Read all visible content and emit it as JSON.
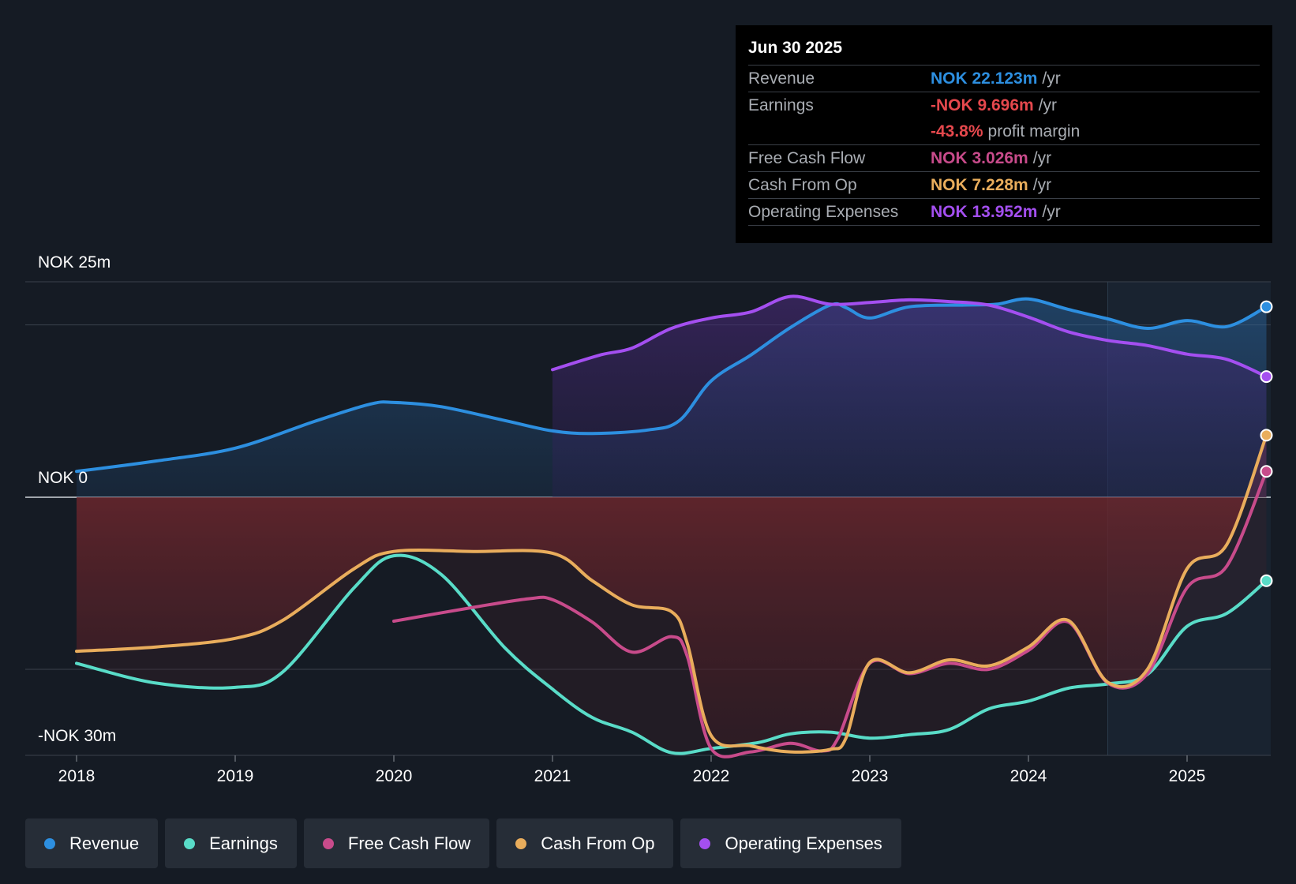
{
  "tooltip": {
    "date": "Jun 30 2025",
    "rows": [
      {
        "label": "Revenue",
        "value": "NOK 22.123m",
        "unit": "/yr",
        "color": "#2d8fe0"
      },
      {
        "label": "Earnings",
        "value": "-NOK 9.696m",
        "unit": "/yr",
        "color": "#e5484d"
      },
      {
        "label": "",
        "value": "-43.8%",
        "unit": "profit margin",
        "color": "#e5484d"
      },
      {
        "label": "Free Cash Flow",
        "value": "NOK 3.026m",
        "unit": "/yr",
        "color": "#c84b8b"
      },
      {
        "label": "Cash From Op",
        "value": "NOK 7.228m",
        "unit": "/yr",
        "color": "#e9ad5c"
      },
      {
        "label": "Operating Expenses",
        "value": "NOK 13.952m",
        "unit": "/yr",
        "color": "#a44ff0"
      }
    ]
  },
  "chart_data": {
    "type": "area",
    "title": "",
    "xlabel": "",
    "ylabel": "",
    "y_axis_labels": {
      "top": "NOK 25m",
      "zero": "NOK 0",
      "bottom": "-NOK 30m"
    },
    "ylim": [
      -30,
      25
    ],
    "xlim": [
      2017.68,
      2025.5
    ],
    "x_ticks": [
      2018,
      2019,
      2020,
      2021,
      2022,
      2023,
      2024,
      2025
    ],
    "x_tick_labels": [
      "2018",
      "2019",
      "2020",
      "2021",
      "2022",
      "2023",
      "2024",
      "2025"
    ],
    "gridlines_y": [
      25,
      20,
      0,
      -20,
      -30
    ],
    "forecast_start": 2024.5,
    "series": [
      {
        "name": "Revenue",
        "color": "#2d8fe0",
        "filled": true,
        "points": [
          [
            2018,
            3
          ],
          [
            2018.5,
            4.2
          ],
          [
            2019,
            5.7
          ],
          [
            2019.5,
            8.8
          ],
          [
            2019.85,
            10.8
          ],
          [
            2020,
            11
          ],
          [
            2020.3,
            10.5
          ],
          [
            2020.7,
            8.9
          ],
          [
            2021,
            7.7
          ],
          [
            2021.25,
            7.4
          ],
          [
            2021.6,
            7.8
          ],
          [
            2021.8,
            8.9
          ],
          [
            2022,
            13.5
          ],
          [
            2022.25,
            16.5
          ],
          [
            2022.5,
            19.7
          ],
          [
            2022.75,
            22.3
          ],
          [
            2022.85,
            22
          ],
          [
            2023,
            20.8
          ],
          [
            2023.25,
            22.1
          ],
          [
            2023.6,
            22.3
          ],
          [
            2023.8,
            22.4
          ],
          [
            2024,
            23
          ],
          [
            2024.25,
            21.8
          ],
          [
            2024.5,
            20.7
          ],
          [
            2024.75,
            19.6
          ],
          [
            2025,
            20.5
          ],
          [
            2025.25,
            19.8
          ],
          [
            2025.5,
            22.1
          ]
        ]
      },
      {
        "name": "Operating Expenses",
        "color": "#a44ff0",
        "filled": true,
        "points": [
          [
            2021,
            14.8
          ],
          [
            2021.3,
            16.5
          ],
          [
            2021.5,
            17.3
          ],
          [
            2021.75,
            19.6
          ],
          [
            2022,
            20.8
          ],
          [
            2022.25,
            21.5
          ],
          [
            2022.5,
            23.3
          ],
          [
            2022.75,
            22.4
          ],
          [
            2023,
            22.6
          ],
          [
            2023.25,
            22.9
          ],
          [
            2023.5,
            22.7
          ],
          [
            2023.75,
            22.3
          ],
          [
            2024,
            20.9
          ],
          [
            2024.25,
            19.2
          ],
          [
            2024.5,
            18.2
          ],
          [
            2024.75,
            17.6
          ],
          [
            2025,
            16.6
          ],
          [
            2025.25,
            16
          ],
          [
            2025.5,
            14
          ]
        ]
      },
      {
        "name": "Earnings",
        "color": "#59dcc8",
        "filled": true,
        "points": [
          [
            2018,
            -19.3
          ],
          [
            2018.5,
            -21.6
          ],
          [
            2019,
            -22.1
          ],
          [
            2019.3,
            -20.3
          ],
          [
            2019.75,
            -10.5
          ],
          [
            2020,
            -6.8
          ],
          [
            2020.3,
            -9
          ],
          [
            2020.7,
            -17.5
          ],
          [
            2021,
            -22.3
          ],
          [
            2021.25,
            -25.6
          ],
          [
            2021.5,
            -27.3
          ],
          [
            2021.75,
            -29.7
          ],
          [
            2022,
            -29.2
          ],
          [
            2022.3,
            -28.5
          ],
          [
            2022.5,
            -27.5
          ],
          [
            2022.75,
            -27.3
          ],
          [
            2023,
            -28
          ],
          [
            2023.25,
            -27.6
          ],
          [
            2023.5,
            -27
          ],
          [
            2023.75,
            -24.6
          ],
          [
            2024,
            -23.7
          ],
          [
            2024.25,
            -22.2
          ],
          [
            2024.5,
            -21.7
          ],
          [
            2024.75,
            -20.6
          ],
          [
            2025,
            -15
          ],
          [
            2025.25,
            -13.5
          ],
          [
            2025.5,
            -9.7
          ]
        ]
      },
      {
        "name": "Free Cash Flow",
        "color": "#c84b8b",
        "filled": false,
        "points": [
          [
            2020,
            -14.4
          ],
          [
            2020.5,
            -12.8
          ],
          [
            2020.85,
            -11.8
          ],
          [
            2021,
            -11.9
          ],
          [
            2021.25,
            -14.5
          ],
          [
            2021.5,
            -18
          ],
          [
            2021.75,
            -16.2
          ],
          [
            2021.85,
            -18.5
          ],
          [
            2022,
            -29.2
          ],
          [
            2022.25,
            -29.6
          ],
          [
            2022.5,
            -28.6
          ],
          [
            2022.7,
            -29.5
          ],
          [
            2022.8,
            -28
          ],
          [
            2023,
            -19.3
          ],
          [
            2023.25,
            -20.5
          ],
          [
            2023.5,
            -19.3
          ],
          [
            2023.75,
            -20
          ],
          [
            2024,
            -17.8
          ],
          [
            2024.25,
            -14.5
          ],
          [
            2024.5,
            -21.6
          ],
          [
            2024.75,
            -20.5
          ],
          [
            2025,
            -10.5
          ],
          [
            2025.25,
            -8
          ],
          [
            2025.5,
            3
          ]
        ]
      },
      {
        "name": "Cash From Op",
        "color": "#e9ad5c",
        "filled": true,
        "points": [
          [
            2018,
            -17.9
          ],
          [
            2018.5,
            -17.4
          ],
          [
            2019,
            -16.4
          ],
          [
            2019.3,
            -14.3
          ],
          [
            2019.75,
            -8.3
          ],
          [
            2020,
            -6.3
          ],
          [
            2020.5,
            -6.3
          ],
          [
            2021,
            -6.5
          ],
          [
            2021.25,
            -9.7
          ],
          [
            2021.5,
            -12.5
          ],
          [
            2021.75,
            -13.3
          ],
          [
            2021.85,
            -17
          ],
          [
            2022,
            -27.7
          ],
          [
            2022.25,
            -28.9
          ],
          [
            2022.5,
            -29.6
          ],
          [
            2022.75,
            -29.3
          ],
          [
            2022.85,
            -28
          ],
          [
            2023,
            -19.2
          ],
          [
            2023.25,
            -20.4
          ],
          [
            2023.5,
            -18.9
          ],
          [
            2023.75,
            -19.6
          ],
          [
            2024,
            -17.4
          ],
          [
            2024.25,
            -14.3
          ],
          [
            2024.5,
            -21.5
          ],
          [
            2024.75,
            -20
          ],
          [
            2025,
            -8.3
          ],
          [
            2025.25,
            -5.5
          ],
          [
            2025.5,
            7.2
          ]
        ]
      }
    ]
  },
  "legend": [
    {
      "label": "Revenue",
      "color": "#2d8fe0"
    },
    {
      "label": "Earnings",
      "color": "#59dcc8"
    },
    {
      "label": "Free Cash Flow",
      "color": "#c84b8b"
    },
    {
      "label": "Cash From Op",
      "color": "#e9ad5c"
    },
    {
      "label": "Operating Expenses",
      "color": "#a44ff0"
    }
  ]
}
